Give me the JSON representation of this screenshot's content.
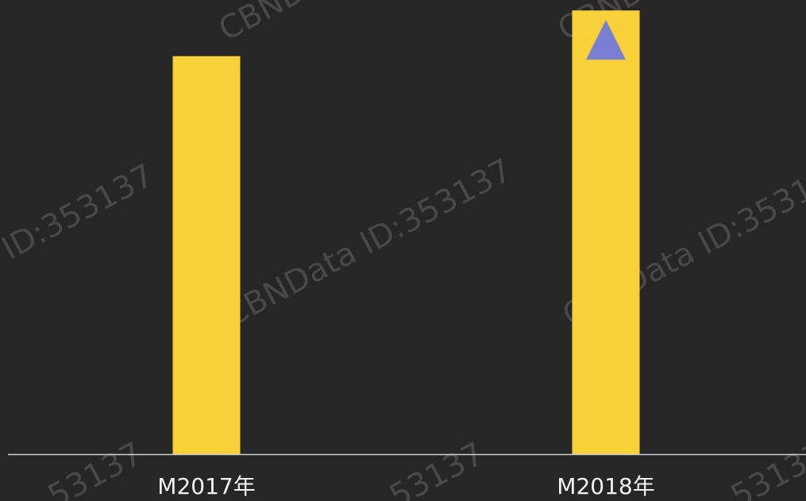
{
  "watermark": {
    "brand_text": "CBNData",
    "id_text": "ID:353137",
    "full_text": "CBNData ID:353137",
    "part_text": "53137"
  },
  "colors": {
    "background": "#262626",
    "bar": "#F8D038",
    "axis": "#cfcfcf",
    "marker": "#7b7fd3",
    "tick_label": "#f2f2f2"
  },
  "chart_data": {
    "type": "bar",
    "categories": [
      "M2017年",
      "M2018年"
    ],
    "values": [
      0.897,
      1.0
    ],
    "value_scale": "relative to the M2018年 bar",
    "ylim": [
      0,
      1.02
    ],
    "title": "",
    "xlabel": "",
    "ylabel": "",
    "grid": false,
    "legend": "none",
    "annotations": [
      {
        "category": "M2018年",
        "marker": "up-triangle"
      }
    ]
  }
}
